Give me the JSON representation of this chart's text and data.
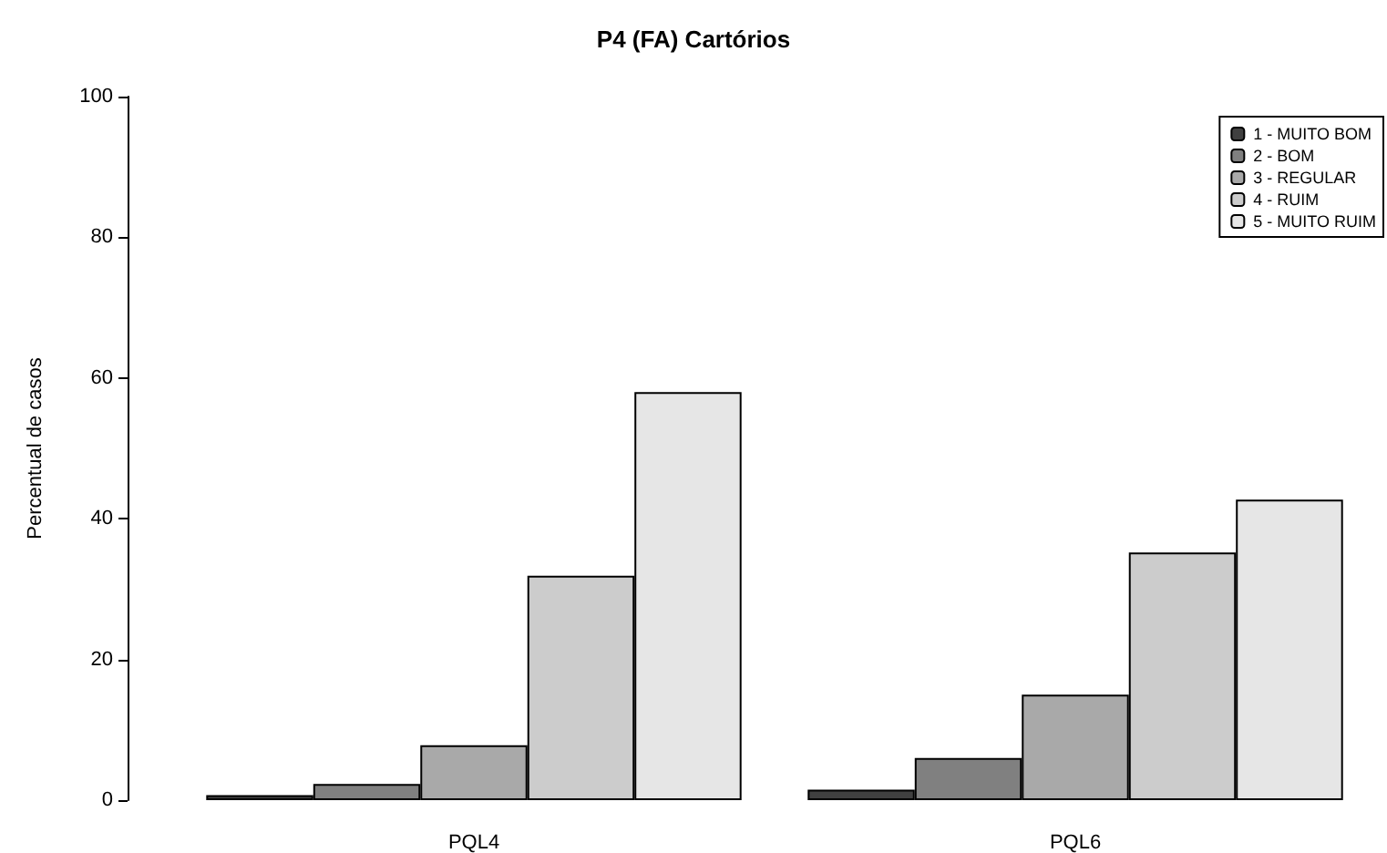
{
  "chart_data": {
    "type": "bar",
    "title": "P4 (FA) Cartórios",
    "ylabel": "Percentual de casos",
    "categories": [
      "PQL4",
      "PQL6"
    ],
    "series": [
      {
        "name": "1 - MUITO BOM",
        "color": "#404040",
        "values": [
          0.7,
          1.5
        ]
      },
      {
        "name": "2 - BOM",
        "color": "#808080",
        "values": [
          2.3,
          6.0
        ]
      },
      {
        "name": "3 - REGULAR",
        "color": "#a9a9a9",
        "values": [
          7.8,
          15.0
        ]
      },
      {
        "name": "4 - RUIM",
        "color": "#cccccc",
        "values": [
          31.9,
          35.2
        ]
      },
      {
        "name": "5 - MUITO RUIM",
        "color": "#e6e6e6",
        "values": [
          58.0,
          42.7
        ]
      }
    ],
    "ylim": [
      0,
      100
    ],
    "yticks": [
      0,
      20,
      40,
      60,
      80,
      100
    ],
    "grid": false,
    "legend": "top right"
  }
}
